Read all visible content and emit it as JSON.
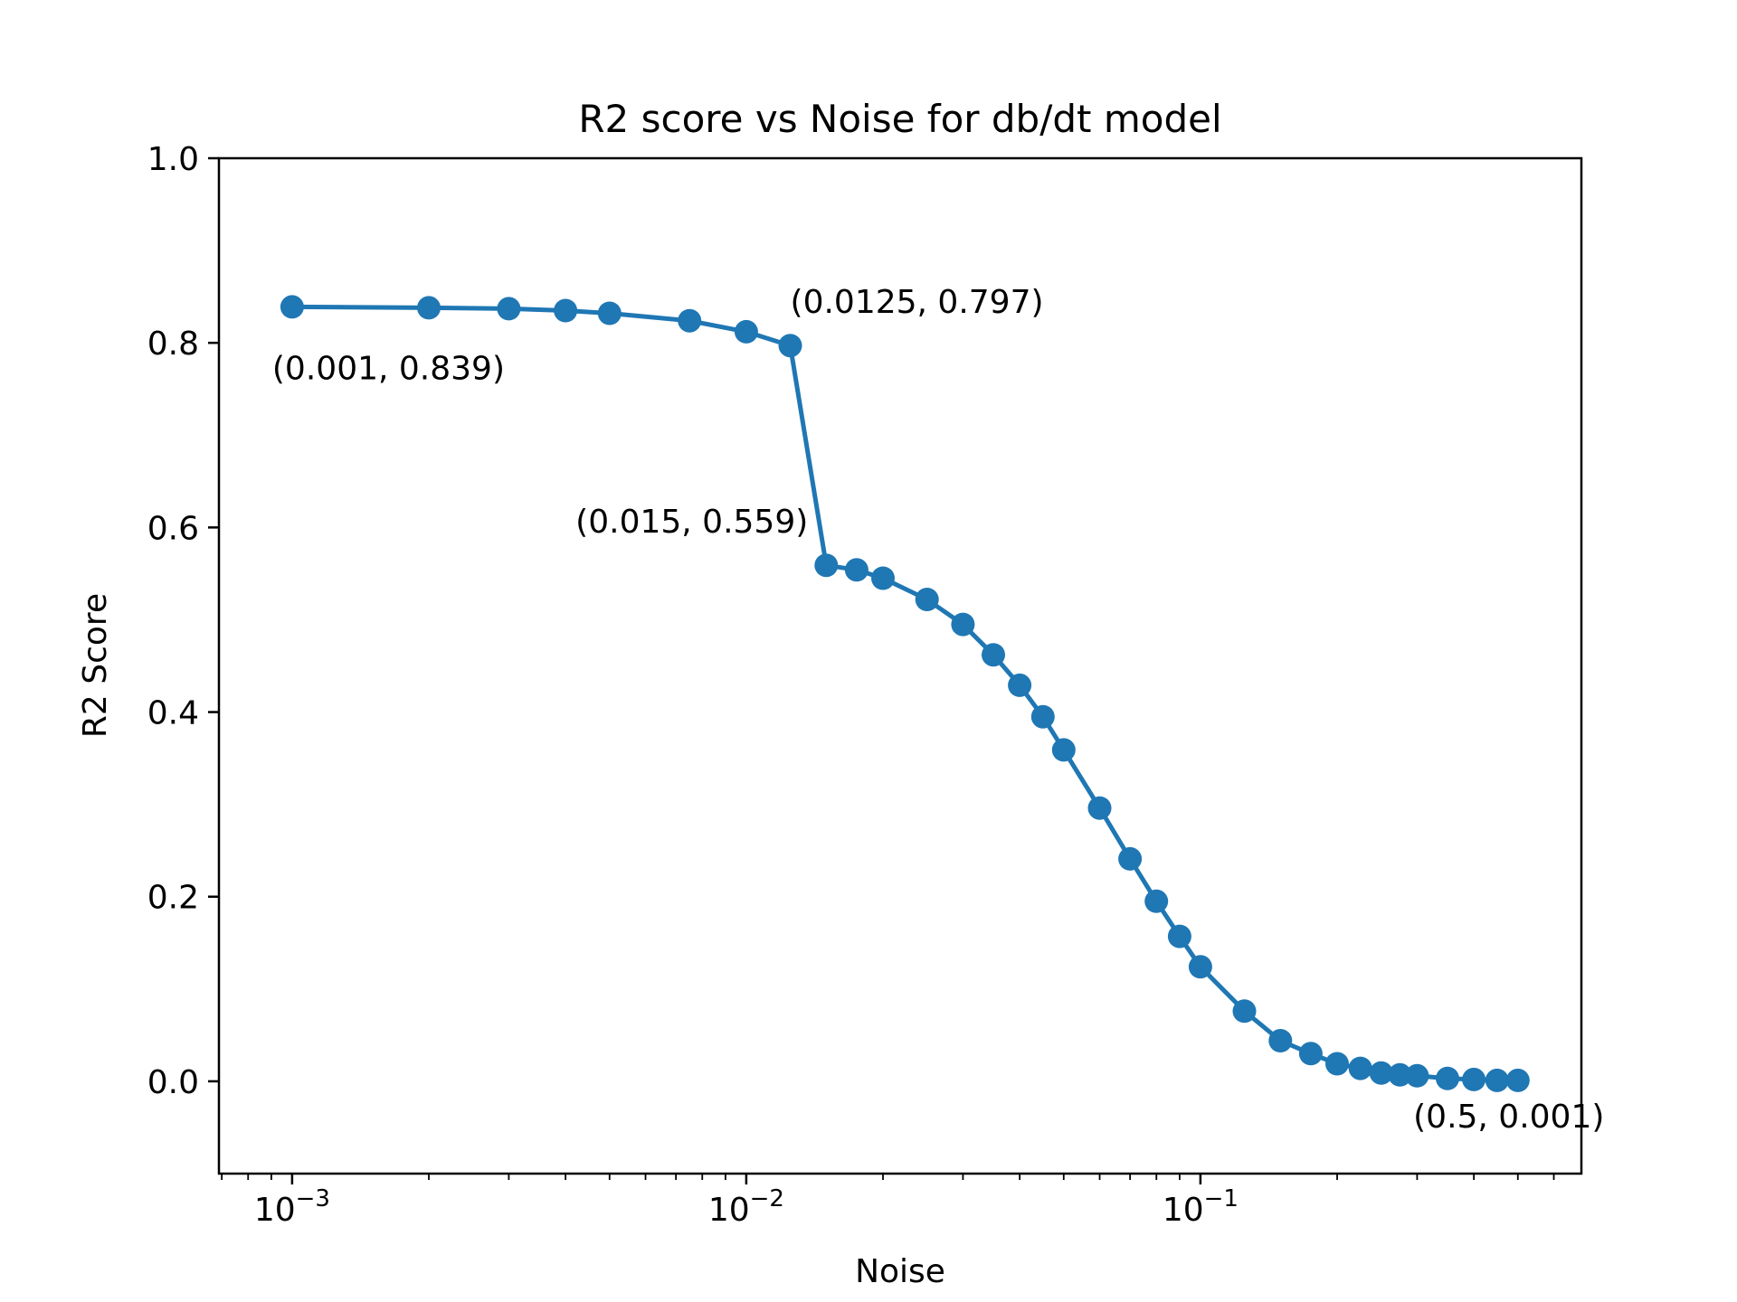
{
  "chart_data": {
    "type": "line",
    "title": "R2 score vs Noise for db/dt model",
    "xlabel": "Noise",
    "ylabel": "R2 Score",
    "xscale": "log",
    "xlim": [
      0.00069,
      0.69
    ],
    "ylim": [
      -0.1,
      1.0
    ],
    "xticks": [
      {
        "value": 0.001,
        "base": "10",
        "exp": "−3"
      },
      {
        "value": 0.01,
        "base": "10",
        "exp": "−2"
      },
      {
        "value": 0.1,
        "base": "10",
        "exp": "−1"
      }
    ],
    "yticks": [
      {
        "value": 0.0,
        "label": "0.0"
      },
      {
        "value": 0.2,
        "label": "0.2"
      },
      {
        "value": 0.4,
        "label": "0.4"
      },
      {
        "value": 0.6,
        "label": "0.6"
      },
      {
        "value": 0.8,
        "label": "0.8"
      },
      {
        "value": 1.0,
        "label": "1.0"
      }
    ],
    "grid": false,
    "color": "#1f77b4",
    "marker": "circle",
    "series": [
      {
        "x": [
          0.001,
          0.002,
          0.003,
          0.004,
          0.005,
          0.0075,
          0.01,
          0.0125,
          0.015,
          0.0175,
          0.02,
          0.025,
          0.03,
          0.035,
          0.04,
          0.045,
          0.05,
          0.06,
          0.07,
          0.08,
          0.09,
          0.1,
          0.125,
          0.15,
          0.175,
          0.2,
          0.225,
          0.25,
          0.275,
          0.3,
          0.35,
          0.4,
          0.45,
          0.5
        ],
        "y": [
          0.839,
          0.838,
          0.837,
          0.835,
          0.832,
          0.824,
          0.812,
          0.797,
          0.559,
          0.554,
          0.545,
          0.522,
          0.495,
          0.462,
          0.429,
          0.395,
          0.359,
          0.296,
          0.241,
          0.195,
          0.157,
          0.124,
          0.076,
          0.044,
          0.03,
          0.019,
          0.014,
          0.009,
          0.007,
          0.006,
          0.003,
          0.002,
          0.001,
          0.001
        ]
      }
    ],
    "annotations": [
      {
        "text": "(0.001, 0.839)",
        "x": 0.001,
        "y": 0.839,
        "anchor": "start",
        "placement": "below"
      },
      {
        "text": "(0.0125, 0.797)",
        "x": 0.0125,
        "y": 0.797,
        "anchor": "start",
        "placement": "above"
      },
      {
        "text": "(0.015, 0.559)",
        "x": 0.015,
        "y": 0.559,
        "anchor": "end",
        "placement": "above"
      },
      {
        "text": "(0.5, 0.001)",
        "x": 0.5,
        "y": 0.001,
        "anchor": "middle",
        "placement": "below"
      }
    ]
  }
}
